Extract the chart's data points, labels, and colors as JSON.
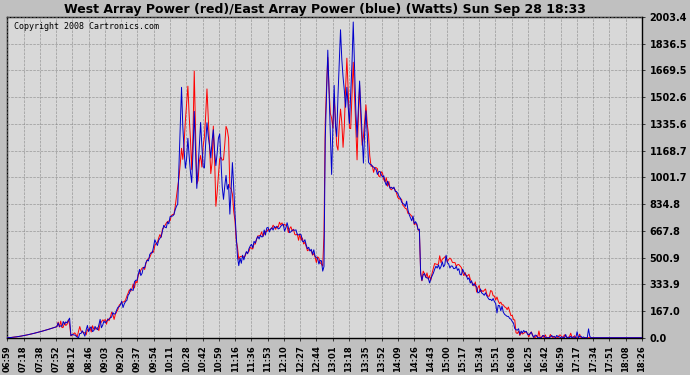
{
  "title": "West Array Power (red)/East Array Power (blue) (Watts) Sun Sep 28 18:33",
  "copyright": "Copyright 2008 Cartronics.com",
  "bg_color": "#c0c0c0",
  "plot_bg_color": "#d8d8d8",
  "grid_color": "#888888",
  "red_color": "#ff0000",
  "blue_color": "#0000cc",
  "title_color": "#000000",
  "label_color": "#000000",
  "yticks": [
    0.0,
    167.0,
    333.9,
    500.9,
    667.8,
    834.8,
    1001.7,
    1168.7,
    1335.6,
    1502.6,
    1669.5,
    1836.5,
    2003.4
  ],
  "xtick_labels": [
    "06:59",
    "07:18",
    "07:38",
    "07:52",
    "08:12",
    "08:46",
    "09:03",
    "09:20",
    "09:37",
    "09:54",
    "10:11",
    "10:28",
    "10:42",
    "10:59",
    "11:16",
    "11:36",
    "11:53",
    "12:10",
    "12:27",
    "12:44",
    "13:01",
    "13:18",
    "13:35",
    "13:52",
    "14:09",
    "14:26",
    "14:43",
    "15:00",
    "15:17",
    "15:34",
    "15:51",
    "16:08",
    "16:25",
    "16:42",
    "16:59",
    "17:17",
    "17:34",
    "17:51",
    "18:08",
    "18:26"
  ],
  "ymin": 0.0,
  "ymax": 2003.4,
  "figwidth": 6.9,
  "figheight": 3.75,
  "dpi": 100
}
